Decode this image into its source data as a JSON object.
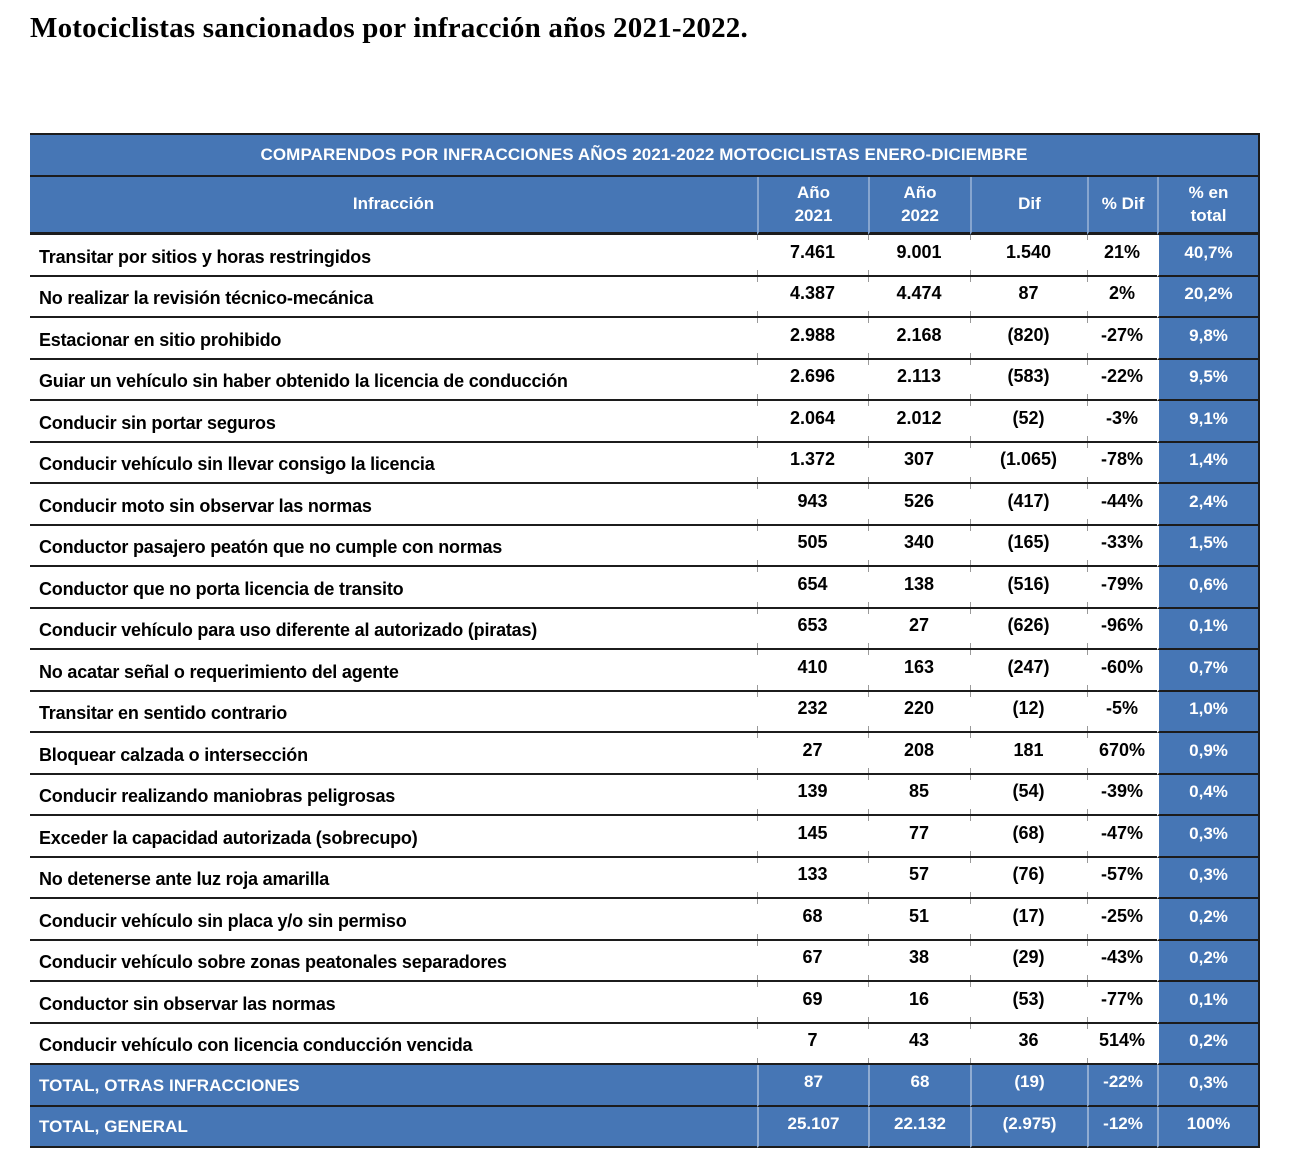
{
  "page_title": "Motociclistas sancionados por infracción años 2021-2022.",
  "colors": {
    "accent_blue": "#4676B5",
    "line_dark": "#1c1c1c",
    "header_text": "#ffffff",
    "body_text": "#000000"
  },
  "table": {
    "banner": "COMPARENDOS POR INFRACCIONES AÑOS 2021-2022 MOTOCICLISTAS ENERO-DICIEMBRE",
    "columns": [
      "Infracción",
      "Año\n2021",
      "Año\n2022",
      "Dif",
      "% Dif",
      "% en\ntotal"
    ],
    "rows": [
      [
        "Transitar por sitios y horas restringidos",
        "7.461",
        "9.001",
        "1.540",
        "21%",
        "40,7%"
      ],
      [
        "No realizar la revisión técnico-mecánica",
        "4.387",
        "4.474",
        "87",
        "2%",
        "20,2%"
      ],
      [
        "Estacionar en sitio prohibido",
        "2.988",
        "2.168",
        "(820)",
        "-27%",
        "9,8%"
      ],
      [
        "Guiar un vehículo sin haber obtenido la licencia de conducción",
        "2.696",
        "2.113",
        "(583)",
        "-22%",
        "9,5%"
      ],
      [
        "Conducir sin portar seguros",
        "2.064",
        "2.012",
        "(52)",
        "-3%",
        "9,1%"
      ],
      [
        "Conducir vehículo sin llevar consigo la licencia",
        "1.372",
        "307",
        "(1.065)",
        "-78%",
        "1,4%"
      ],
      [
        "Conducir moto sin observar las normas",
        "943",
        "526",
        "(417)",
        "-44%",
        "2,4%"
      ],
      [
        "Conductor pasajero peatón que no cumple con normas",
        "505",
        "340",
        "(165)",
        "-33%",
        "1,5%"
      ],
      [
        "Conductor que no porta licencia de transito",
        "654",
        "138",
        "(516)",
        "-79%",
        "0,6%"
      ],
      [
        "Conducir vehículo para uso diferente al autorizado (piratas)",
        "653",
        "27",
        "(626)",
        "-96%",
        "0,1%"
      ],
      [
        "No acatar señal o requerimiento del agente",
        "410",
        "163",
        "(247)",
        "-60%",
        "0,7%"
      ],
      [
        "Transitar en sentido contrario",
        "232",
        "220",
        "(12)",
        "-5%",
        "1,0%"
      ],
      [
        "Bloquear calzada o intersección",
        "27",
        "208",
        "181",
        "670%",
        "0,9%"
      ],
      [
        "Conducir realizando maniobras peligrosas",
        "139",
        "85",
        "(54)",
        "-39%",
        "0,4%"
      ],
      [
        "Exceder la capacidad autorizada (sobrecupo)",
        "145",
        "77",
        "(68)",
        "-47%",
        "0,3%"
      ],
      [
        "No detenerse ante luz roja amarilla",
        "133",
        "57",
        "(76)",
        "-57%",
        "0,3%"
      ],
      [
        "Conducir vehículo sin placa y/o sin permiso",
        "68",
        "51",
        "(17)",
        "-25%",
        "0,2%"
      ],
      [
        "Conducir vehículo sobre zonas peatonales separadores",
        "67",
        "38",
        "(29)",
        "-43%",
        "0,2%"
      ],
      [
        "Conductor sin observar las normas",
        "69",
        "16",
        "(53)",
        "-77%",
        "0,1%"
      ],
      [
        "Conducir vehículo con licencia conducción vencida",
        "7",
        "43",
        "36",
        "514%",
        "0,2%"
      ]
    ],
    "totals": [
      [
        "TOTAL, OTRAS INFRACCIONES",
        "87",
        "68",
        "(19)",
        "-22%",
        "0,3%"
      ],
      [
        "TOTAL, GENERAL",
        "25.107",
        "22.132",
        "(2.975)",
        "-12%",
        "100%"
      ]
    ]
  }
}
